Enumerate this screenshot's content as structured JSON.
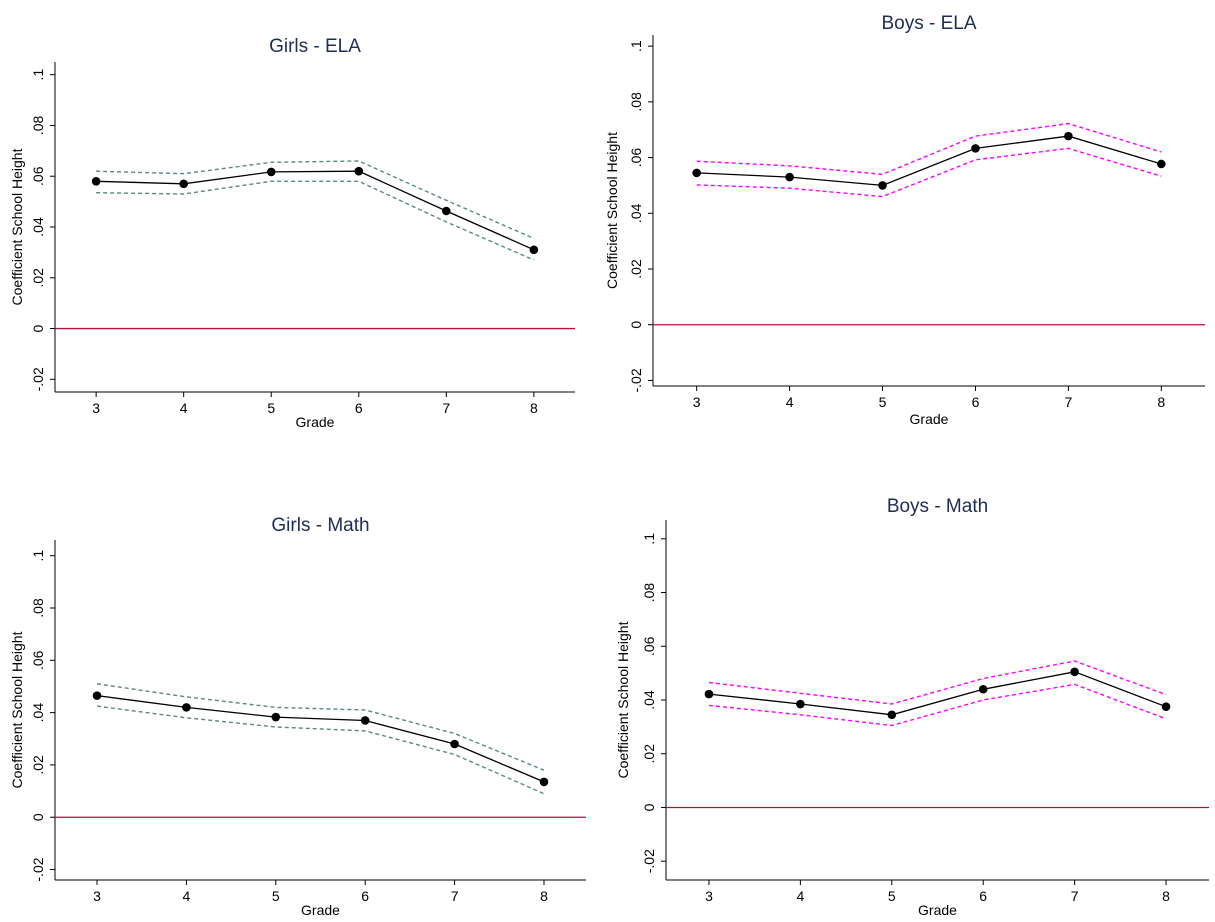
{
  "chart_data": [
    {
      "type": "line",
      "title": "Girls - ELA",
      "xlabel": "Grade",
      "ylabel": "Coefficient School Height",
      "x": [
        3,
        4,
        5,
        6,
        7,
        8
      ],
      "ylim": [
        -0.025,
        0.105
      ],
      "yticks": [
        -0.02,
        0,
        0.02,
        0.04,
        0.06,
        0.08,
        0.1
      ],
      "ytick_labels": [
        "-.02",
        "0",
        ".02",
        ".04",
        ".06",
        ".08",
        ".1"
      ],
      "xticks": [
        3,
        4,
        5,
        6,
        7,
        8
      ],
      "xtick_labels": [
        "3",
        "4",
        "5",
        "6",
        "7",
        "8"
      ],
      "reference_line": 0,
      "ci_color": "#5a8a7a",
      "series": [
        {
          "role": "estimate",
          "values": [
            0.058,
            0.057,
            0.0617,
            0.062,
            0.0463,
            0.031
          ]
        },
        {
          "role": "upper",
          "values": [
            0.062,
            0.061,
            0.0655,
            0.066,
            0.0505,
            0.0355
          ]
        },
        {
          "role": "lower",
          "values": [
            0.0535,
            0.053,
            0.058,
            0.058,
            0.042,
            0.027
          ]
        }
      ]
    },
    {
      "type": "line",
      "title": "Boys - ELA",
      "xlabel": "Grade",
      "ylabel": "Coefficient School Height",
      "x": [
        3,
        4,
        5,
        6,
        7,
        8
      ],
      "ylim": [
        -0.022,
        0.104
      ],
      "yticks": [
        -0.02,
        0,
        0.02,
        0.04,
        0.06,
        0.08,
        0.1
      ],
      "ytick_labels": [
        "-.02",
        "0",
        ".02",
        ".04",
        ".06",
        ".08",
        ".1"
      ],
      "xticks": [
        3,
        4,
        5,
        6,
        7,
        8
      ],
      "xtick_labels": [
        "3",
        "4",
        "5",
        "6",
        "7",
        "8"
      ],
      "reference_line": 0,
      "ci_color": "#ff00ff",
      "series": [
        {
          "role": "estimate",
          "values": [
            0.0545,
            0.053,
            0.05,
            0.0633,
            0.0677,
            0.0577
          ]
        },
        {
          "role": "upper",
          "values": [
            0.0587,
            0.057,
            0.054,
            0.0677,
            0.0722,
            0.062
          ]
        },
        {
          "role": "lower",
          "values": [
            0.0502,
            0.049,
            0.046,
            0.0592,
            0.0633,
            0.0533
          ]
        }
      ]
    },
    {
      "type": "line",
      "title": "Girls - Math",
      "xlabel": "Grade",
      "ylabel": "Coefficient School Height",
      "x": [
        3,
        4,
        5,
        6,
        7,
        8
      ],
      "ylim": [
        -0.024,
        0.106
      ],
      "yticks": [
        -0.02,
        0,
        0.02,
        0.04,
        0.06,
        0.08,
        0.1
      ],
      "ytick_labels": [
        "-.02",
        "0",
        ".02",
        ".04",
        ".06",
        ".08",
        ".1"
      ],
      "xticks": [
        3,
        4,
        5,
        6,
        7,
        8
      ],
      "xtick_labels": [
        "3",
        "4",
        "5",
        "6",
        "7",
        "8"
      ],
      "reference_line": 0,
      "ci_color": "#5a8a7a",
      "series": [
        {
          "role": "estimate",
          "values": [
            0.0465,
            0.042,
            0.0383,
            0.037,
            0.028,
            0.0135
          ]
        },
        {
          "role": "upper",
          "values": [
            0.051,
            0.046,
            0.042,
            0.041,
            0.032,
            0.018
          ]
        },
        {
          "role": "lower",
          "values": [
            0.0425,
            0.038,
            0.0345,
            0.033,
            0.024,
            0.009
          ]
        }
      ]
    },
    {
      "type": "line",
      "title": "Boys - Math",
      "xlabel": "Grade",
      "ylabel": "Coefficient School Height",
      "x": [
        3,
        4,
        5,
        6,
        7,
        8
      ],
      "ylim": [
        -0.027,
        0.107
      ],
      "yticks": [
        -0.02,
        0,
        0.02,
        0.04,
        0.06,
        0.08,
        0.1
      ],
      "ytick_labels": [
        "-.02",
        "0",
        ".02",
        ".04",
        ".06",
        ".08",
        ".1"
      ],
      "xticks": [
        3,
        4,
        5,
        6,
        7,
        8
      ],
      "xtick_labels": [
        "3",
        "4",
        "5",
        "6",
        "7",
        "8"
      ],
      "reference_line": 0,
      "ci_color": "#ff00ff",
      "series": [
        {
          "role": "estimate",
          "values": [
            0.0422,
            0.0385,
            0.0345,
            0.044,
            0.0505,
            0.0375
          ]
        },
        {
          "role": "upper",
          "values": [
            0.0465,
            0.0425,
            0.0385,
            0.048,
            0.0545,
            0.042
          ]
        },
        {
          "role": "lower",
          "values": [
            0.038,
            0.0345,
            0.0305,
            0.04,
            0.0458,
            0.033
          ]
        }
      ]
    }
  ]
}
